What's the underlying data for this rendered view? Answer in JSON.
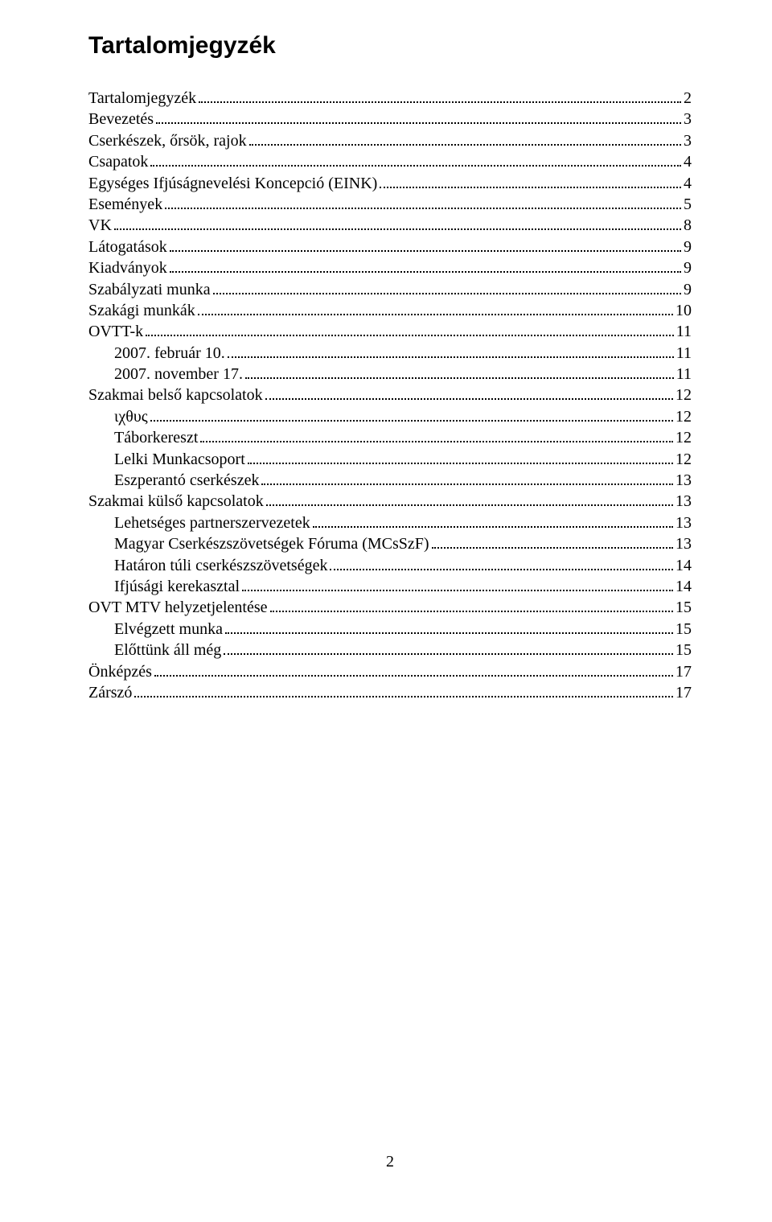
{
  "title": "Tartalomjegyzék",
  "page_number": "2",
  "toc": [
    {
      "label": "Tartalomjegyzék",
      "page": "2",
      "indent": 0
    },
    {
      "label": "Bevezetés",
      "page": "3",
      "indent": 0
    },
    {
      "label": "Cserkészek, őrsök, rajok",
      "page": "3",
      "indent": 0
    },
    {
      "label": "Csapatok",
      "page": "4",
      "indent": 0
    },
    {
      "label": "Egységes Ifjúságnevelési Koncepció (EINK)",
      "page": "4",
      "indent": 0
    },
    {
      "label": "Események",
      "page": "5",
      "indent": 0
    },
    {
      "label": "VK",
      "page": "8",
      "indent": 0
    },
    {
      "label": "Látogatások",
      "page": "9",
      "indent": 0
    },
    {
      "label": "Kiadványok",
      "page": "9",
      "indent": 0
    },
    {
      "label": "Szabályzati munka",
      "page": "9",
      "indent": 0
    },
    {
      "label": "Szakági munkák",
      "page": "10",
      "indent": 0
    },
    {
      "label": "OVTT-k",
      "page": "11",
      "indent": 0
    },
    {
      "label": "2007. február 10. ",
      "page": "11",
      "indent": 1
    },
    {
      "label": "2007. november 17.",
      "page": "11",
      "indent": 1
    },
    {
      "label": "Szakmai belső kapcsolatok",
      "page": "12",
      "indent": 0
    },
    {
      "label": "ιχθυς",
      "page": "12",
      "indent": 1
    },
    {
      "label": "Táborkereszt",
      "page": "12",
      "indent": 1
    },
    {
      "label": "Lelki Munkacsoport",
      "page": "12",
      "indent": 1
    },
    {
      "label": "Eszperantó cserkészek",
      "page": "13",
      "indent": 1
    },
    {
      "label": "Szakmai külső kapcsolatok",
      "page": "13",
      "indent": 0
    },
    {
      "label": "Lehetséges partnerszervezetek",
      "page": "13",
      "indent": 1
    },
    {
      "label": "Magyar Cserkészszövetségek Fóruma (MCsSzF)",
      "page": "13",
      "indent": 1
    },
    {
      "label": "Határon túli cserkészszövetségek",
      "page": "14",
      "indent": 1
    },
    {
      "label": "Ifjúsági kerekasztal",
      "page": "14",
      "indent": 1
    },
    {
      "label": "OVT MTV helyzetjelentése",
      "page": "15",
      "indent": 0
    },
    {
      "label": "Elvégzett munka",
      "page": "15",
      "indent": 1
    },
    {
      "label": "Előttünk áll még",
      "page": "15",
      "indent": 1
    },
    {
      "label": "Önképzés",
      "page": "17",
      "indent": 0
    },
    {
      "label": "Zárszó",
      "page": "17",
      "indent": 0
    }
  ]
}
